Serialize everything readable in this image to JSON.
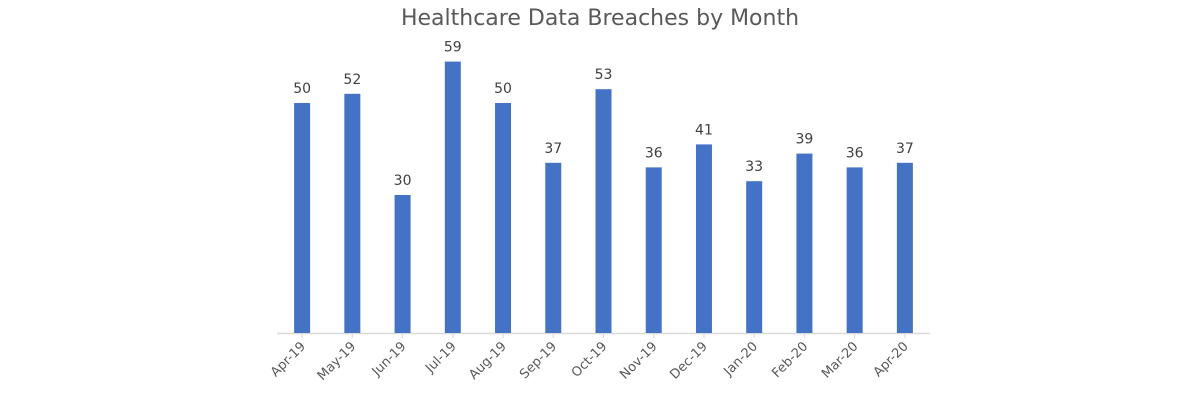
{
  "chart_data": {
    "type": "bar",
    "title": "Healthcare Data Breaches by Month",
    "categories": [
      "Apr-19",
      "May-19",
      "Jun-19",
      "Jul-19",
      "Aug-19",
      "Sep-19",
      "Oct-19",
      "Nov-19",
      "Dec-19",
      "Jan-20",
      "Feb-20",
      "Mar-20",
      "Apr-20"
    ],
    "values": [
      50,
      52,
      30,
      59,
      50,
      37,
      53,
      36,
      41,
      33,
      39,
      36,
      37
    ],
    "xlabel": "",
    "ylabel": "",
    "ylim": [
      0,
      60
    ],
    "grid": false,
    "legend": "none",
    "data_labels": true,
    "colors": {
      "bar": "#4472C4",
      "axis": "#D9D9D9",
      "title": "#595959",
      "label": "#404040"
    }
  }
}
